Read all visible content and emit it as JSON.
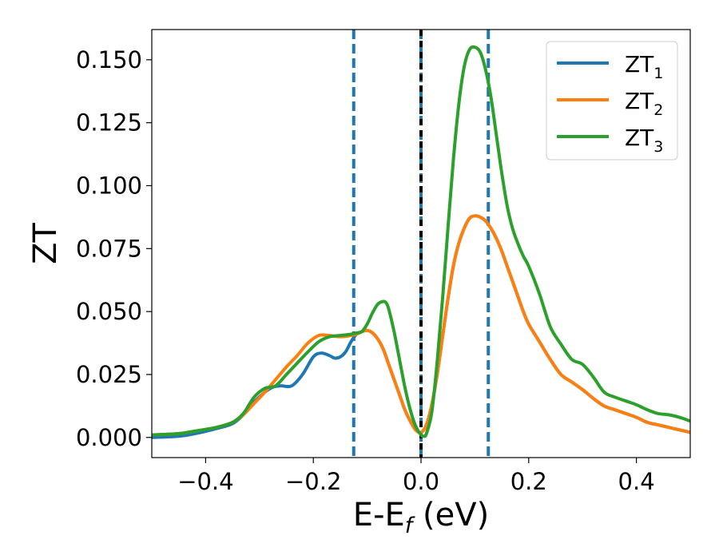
{
  "chart_data": {
    "type": "line",
    "xlabel": "E-E",
    "xlabel_sub": "f",
    "xlabel_unit": " (eV)",
    "ylabel": "ZT",
    "xlim": [
      -0.5,
      0.5
    ],
    "ylim": [
      -0.008,
      0.162
    ],
    "xticks": [
      -0.4,
      -0.2,
      0.0,
      0.2,
      0.4
    ],
    "xtick_labels": [
      "−0.4",
      "−0.2",
      "0.0",
      "0.2",
      "0.4"
    ],
    "yticks": [
      0.0,
      0.025,
      0.05,
      0.075,
      0.1,
      0.125,
      0.15
    ],
    "ytick_labels": [
      "0.000",
      "0.025",
      "0.050",
      "0.075",
      "0.100",
      "0.125",
      "0.150"
    ],
    "grid": false,
    "legend_position": "top-right",
    "vlines": [
      {
        "x": -0.125,
        "style": "dashed",
        "color": "#1f77b4"
      },
      {
        "x": 0.125,
        "style": "dashed",
        "color": "#1f77b4"
      },
      {
        "x": 0.0,
        "style": "dashed",
        "color": "#1f77b4"
      },
      {
        "x": 0.0,
        "style": "dashed",
        "color": "#000000"
      }
    ],
    "series": [
      {
        "name": "ZT",
        "sub": "1",
        "color": "#1f77b4",
        "x": [
          -0.5,
          -0.45,
          -0.42,
          -0.38,
          -0.35,
          -0.33,
          -0.31,
          -0.29,
          -0.275,
          -0.26,
          -0.24,
          -0.22,
          -0.2,
          -0.185,
          -0.17,
          -0.16,
          -0.15,
          -0.14,
          -0.13,
          -0.12,
          -0.11,
          -0.1,
          -0.09,
          -0.08,
          -0.07,
          -0.06,
          -0.05,
          -0.04,
          -0.03,
          -0.02,
          -0.01,
          0.0,
          0.01,
          0.02,
          0.03,
          0.04,
          0.05,
          0.06,
          0.07,
          0.08,
          0.09,
          0.1,
          0.11,
          0.12,
          0.13,
          0.14,
          0.15,
          0.16,
          0.17,
          0.18,
          0.19,
          0.2,
          0.22,
          0.24,
          0.26,
          0.28,
          0.3,
          0.32,
          0.34,
          0.36,
          0.38,
          0.4,
          0.42,
          0.44,
          0.46,
          0.48,
          0.5
        ],
        "values": [
          0.0,
          0.0005,
          0.0015,
          0.0035,
          0.0055,
          0.009,
          0.014,
          0.018,
          0.02,
          0.0205,
          0.0205,
          0.025,
          0.032,
          0.0335,
          0.0325,
          0.0315,
          0.032,
          0.034,
          0.038,
          0.041,
          0.042,
          0.0425,
          0.0415,
          0.039,
          0.035,
          0.029,
          0.023,
          0.017,
          0.011,
          0.0065,
          0.003,
          0.002,
          0.005,
          0.013,
          0.025,
          0.04,
          0.055,
          0.068,
          0.077,
          0.083,
          0.087,
          0.088,
          0.0875,
          0.086,
          0.083,
          0.079,
          0.074,
          0.068,
          0.062,
          0.056,
          0.05,
          0.045,
          0.038,
          0.031,
          0.025,
          0.022,
          0.019,
          0.0155,
          0.0125,
          0.011,
          0.0095,
          0.008,
          0.006,
          0.005,
          0.004,
          0.003,
          0.002
        ]
      },
      {
        "name": "ZT",
        "sub": "2",
        "color": "#ff7f0e",
        "x": [
          -0.5,
          -0.45,
          -0.42,
          -0.38,
          -0.35,
          -0.33,
          -0.31,
          -0.29,
          -0.27,
          -0.25,
          -0.23,
          -0.21,
          -0.19,
          -0.17,
          -0.15,
          -0.13,
          -0.12,
          -0.11,
          -0.1,
          -0.09,
          -0.08,
          -0.07,
          -0.06,
          -0.05,
          -0.04,
          -0.03,
          -0.02,
          -0.01,
          0.0,
          0.01,
          0.02,
          0.03,
          0.04,
          0.05,
          0.06,
          0.07,
          0.08,
          0.09,
          0.1,
          0.11,
          0.12,
          0.13,
          0.14,
          0.15,
          0.16,
          0.17,
          0.18,
          0.19,
          0.2,
          0.22,
          0.24,
          0.26,
          0.28,
          0.3,
          0.32,
          0.34,
          0.36,
          0.38,
          0.4,
          0.42,
          0.44,
          0.46,
          0.48,
          0.5
        ],
        "values": [
          0.001,
          0.0015,
          0.0025,
          0.004,
          0.006,
          0.009,
          0.0135,
          0.018,
          0.023,
          0.028,
          0.0325,
          0.0375,
          0.0405,
          0.0405,
          0.04,
          0.0405,
          0.041,
          0.042,
          0.0425,
          0.0415,
          0.039,
          0.035,
          0.029,
          0.023,
          0.017,
          0.011,
          0.0065,
          0.003,
          0.002,
          0.005,
          0.013,
          0.025,
          0.04,
          0.055,
          0.068,
          0.077,
          0.083,
          0.087,
          0.088,
          0.0875,
          0.086,
          0.083,
          0.079,
          0.074,
          0.068,
          0.062,
          0.056,
          0.05,
          0.045,
          0.038,
          0.031,
          0.025,
          0.022,
          0.019,
          0.0155,
          0.0125,
          0.011,
          0.0095,
          0.008,
          0.006,
          0.005,
          0.004,
          0.003,
          0.002
        ]
      },
      {
        "name": "ZT",
        "sub": "3",
        "color": "#2ca02c",
        "x": [
          -0.5,
          -0.45,
          -0.42,
          -0.38,
          -0.35,
          -0.33,
          -0.31,
          -0.29,
          -0.27,
          -0.25,
          -0.23,
          -0.21,
          -0.19,
          -0.17,
          -0.15,
          -0.13,
          -0.12,
          -0.11,
          -0.1,
          -0.09,
          -0.08,
          -0.07,
          -0.065,
          -0.06,
          -0.05,
          -0.04,
          -0.03,
          -0.02,
          -0.01,
          0.0,
          0.005,
          0.01,
          0.02,
          0.03,
          0.04,
          0.05,
          0.06,
          0.07,
          0.08,
          0.09,
          0.1,
          0.11,
          0.12,
          0.13,
          0.14,
          0.15,
          0.16,
          0.17,
          0.18,
          0.19,
          0.2,
          0.22,
          0.24,
          0.26,
          0.28,
          0.3,
          0.32,
          0.34,
          0.36,
          0.38,
          0.4,
          0.42,
          0.44,
          0.46,
          0.48,
          0.5
        ],
        "values": [
          0.001,
          0.0015,
          0.0025,
          0.004,
          0.006,
          0.0095,
          0.016,
          0.0195,
          0.0205,
          0.025,
          0.0295,
          0.034,
          0.038,
          0.04,
          0.0405,
          0.041,
          0.0415,
          0.042,
          0.045,
          0.0495,
          0.053,
          0.054,
          0.0535,
          0.051,
          0.042,
          0.031,
          0.02,
          0.011,
          0.0045,
          0.001,
          0.0005,
          0.0015,
          0.01,
          0.03,
          0.055,
          0.083,
          0.11,
          0.132,
          0.147,
          0.154,
          0.155,
          0.153,
          0.146,
          0.135,
          0.12,
          0.105,
          0.092,
          0.083,
          0.077,
          0.072,
          0.068,
          0.057,
          0.044,
          0.037,
          0.031,
          0.029,
          0.024,
          0.018,
          0.016,
          0.0145,
          0.013,
          0.011,
          0.0095,
          0.009,
          0.008,
          0.0065
        ]
      }
    ]
  }
}
